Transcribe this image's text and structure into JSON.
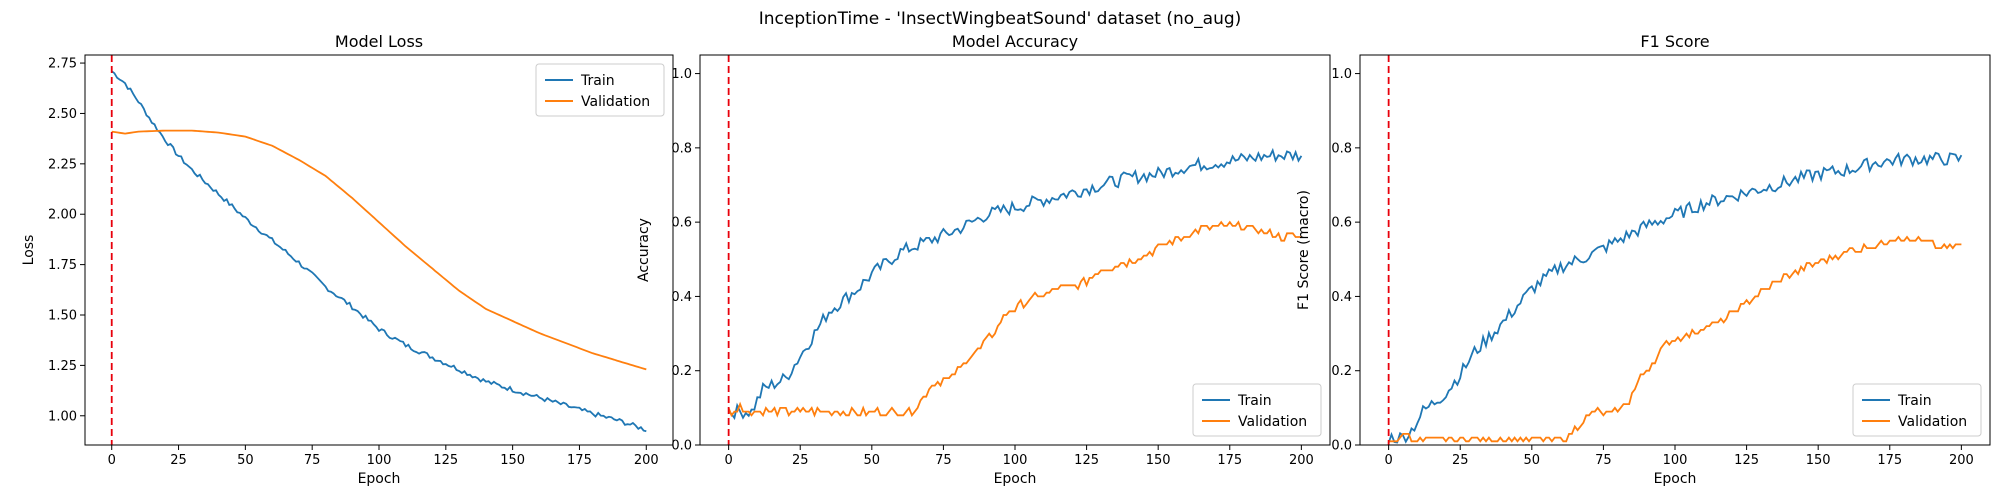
{
  "figure_title": "InceptionTime - 'InsectWingbeatSound' dataset (no_aug)",
  "colors": {
    "train": "#1f77b4",
    "validation": "#ff7f0e",
    "marker": "#e8000b",
    "axis": "#000000"
  },
  "chart_data": [
    {
      "type": "line",
      "title": "Model Loss",
      "xlabel": "Epoch",
      "ylabel": "Loss",
      "xlim": [
        -10,
        210
      ],
      "ylim": [
        0.855,
        2.79
      ],
      "xticks": [
        0,
        25,
        50,
        75,
        100,
        125,
        150,
        175,
        200
      ],
      "yticks": [
        1.0,
        1.25,
        1.5,
        1.75,
        2.0,
        2.25,
        2.5,
        2.75
      ],
      "ytick_labels": [
        "1.00",
        "1.25",
        "1.50",
        "1.75",
        "2.00",
        "2.25",
        "2.50",
        "2.75"
      ],
      "vline_x": 0,
      "legend": "top-right",
      "series": [
        {
          "name": "Train",
          "anchors": [
            [
              0,
              2.71
            ],
            [
              5,
              2.65
            ],
            [
              10,
              2.56
            ],
            [
              15,
              2.46
            ],
            [
              20,
              2.37
            ],
            [
              25,
              2.29
            ],
            [
              30,
              2.22
            ],
            [
              40,
              2.1
            ],
            [
              50,
              1.98
            ],
            [
              60,
              1.87
            ],
            [
              70,
              1.76
            ],
            [
              80,
              1.64
            ],
            [
              90,
              1.54
            ],
            [
              100,
              1.43
            ],
            [
              110,
              1.35
            ],
            [
              120,
              1.29
            ],
            [
              130,
              1.23
            ],
            [
              140,
              1.17
            ],
            [
              150,
              1.13
            ],
            [
              160,
              1.09
            ],
            [
              170,
              1.05
            ],
            [
              180,
              1.01
            ],
            [
              190,
              0.975
            ],
            [
              200,
              0.93
            ]
          ],
          "noise": 0.012
        },
        {
          "name": "Validation",
          "anchors": [
            [
              0,
              2.41
            ],
            [
              5,
              2.4
            ],
            [
              10,
              2.41
            ],
            [
              20,
              2.415
            ],
            [
              30,
              2.415
            ],
            [
              40,
              2.405
            ],
            [
              50,
              2.385
            ],
            [
              60,
              2.34
            ],
            [
              70,
              2.27
            ],
            [
              80,
              2.19
            ],
            [
              90,
              2.08
            ],
            [
              100,
              1.96
            ],
            [
              110,
              1.84
            ],
            [
              120,
              1.73
            ],
            [
              130,
              1.62
            ],
            [
              140,
              1.53
            ],
            [
              150,
              1.47
            ],
            [
              160,
              1.41
            ],
            [
              170,
              1.36
            ],
            [
              180,
              1.31
            ],
            [
              190,
              1.27
            ],
            [
              200,
              1.23
            ]
          ],
          "noise": 0
        }
      ]
    },
    {
      "type": "line",
      "title": "Model Accuracy",
      "xlabel": "Epoch",
      "ylabel": "Accuracy",
      "xlim": [
        -10,
        210
      ],
      "ylim": [
        0,
        1.05
      ],
      "xticks": [
        0,
        25,
        50,
        75,
        100,
        125,
        150,
        175,
        200
      ],
      "yticks": [
        0.0,
        0.2,
        0.4,
        0.6,
        0.8,
        1.0
      ],
      "ytick_labels": [
        "0.0",
        "0.2",
        "0.4",
        "0.6",
        "0.8",
        "1.0"
      ],
      "vline_x": 0,
      "legend": "bottom-right",
      "series": [
        {
          "name": "Train",
          "anchors": [
            [
              0,
              0.09
            ],
            [
              5,
              0.09
            ],
            [
              8,
              0.09
            ],
            [
              12,
              0.15
            ],
            [
              20,
              0.18
            ],
            [
              25,
              0.24
            ],
            [
              30,
              0.3
            ],
            [
              35,
              0.36
            ],
            [
              45,
              0.42
            ],
            [
              50,
              0.46
            ],
            [
              60,
              0.52
            ],
            [
              70,
              0.55
            ],
            [
              80,
              0.58
            ],
            [
              90,
              0.62
            ],
            [
              100,
              0.64
            ],
            [
              110,
              0.66
            ],
            [
              120,
              0.68
            ],
            [
              130,
              0.7
            ],
            [
              140,
              0.72
            ],
            [
              150,
              0.73
            ],
            [
              160,
              0.75
            ],
            [
              170,
              0.76
            ],
            [
              180,
              0.77
            ],
            [
              190,
              0.78
            ],
            [
              200,
              0.78
            ]
          ],
          "noise": 0.018
        },
        {
          "name": "Validation",
          "anchors": [
            [
              0,
              0.09
            ],
            [
              3,
              0.09
            ],
            [
              4,
              0.12
            ],
            [
              5,
              0.09
            ],
            [
              10,
              0.09
            ],
            [
              64,
              0.09
            ],
            [
              68,
              0.13
            ],
            [
              72,
              0.17
            ],
            [
              78,
              0.18
            ],
            [
              82,
              0.22
            ],
            [
              88,
              0.26
            ],
            [
              92,
              0.3
            ],
            [
              98,
              0.36
            ],
            [
              105,
              0.39
            ],
            [
              115,
              0.42
            ],
            [
              125,
              0.44
            ],
            [
              130,
              0.47
            ],
            [
              138,
              0.49
            ],
            [
              145,
              0.51
            ],
            [
              150,
              0.53
            ],
            [
              158,
              0.56
            ],
            [
              165,
              0.58
            ],
            [
              172,
              0.59
            ],
            [
              178,
              0.59
            ],
            [
              185,
              0.58
            ],
            [
              192,
              0.56
            ],
            [
              200,
              0.56
            ]
          ],
          "noise": 0.01,
          "step": true
        }
      ]
    },
    {
      "type": "line",
      "title": "F1 Score",
      "xlabel": "Epoch",
      "ylabel": "F1 Score (macro)",
      "xlim": [
        -10,
        210
      ],
      "ylim": [
        0,
        1.05
      ],
      "xticks": [
        0,
        25,
        50,
        75,
        100,
        125,
        150,
        175,
        200
      ],
      "yticks": [
        0.0,
        0.2,
        0.4,
        0.6,
        0.8,
        1.0
      ],
      "ytick_labels": [
        "0.0",
        "0.2",
        "0.4",
        "0.6",
        "0.8",
        "1.0"
      ],
      "vline_x": 0,
      "legend": "bottom-right",
      "series": [
        {
          "name": "Train",
          "anchors": [
            [
              0,
              0.02
            ],
            [
              5,
              0.02
            ],
            [
              8,
              0.04
            ],
            [
              12,
              0.09
            ],
            [
              20,
              0.14
            ],
            [
              25,
              0.19
            ],
            [
              30,
              0.25
            ],
            [
              40,
              0.33
            ],
            [
              50,
              0.42
            ],
            [
              60,
              0.48
            ],
            [
              70,
              0.51
            ],
            [
              80,
              0.55
            ],
            [
              90,
              0.59
            ],
            [
              100,
              0.62
            ],
            [
              110,
              0.65
            ],
            [
              120,
              0.67
            ],
            [
              130,
              0.69
            ],
            [
              140,
              0.71
            ],
            [
              150,
              0.73
            ],
            [
              160,
              0.74
            ],
            [
              170,
              0.76
            ],
            [
              180,
              0.77
            ],
            [
              190,
              0.77
            ],
            [
              200,
              0.77
            ]
          ],
          "noise": 0.018
        },
        {
          "name": "Validation",
          "anchors": [
            [
              0,
              0.015
            ],
            [
              4,
              0.015
            ],
            [
              6,
              0.04
            ],
            [
              8,
              0.015
            ],
            [
              62,
              0.015
            ],
            [
              66,
              0.05
            ],
            [
              72,
              0.09
            ],
            [
              78,
              0.08
            ],
            [
              84,
              0.12
            ],
            [
              88,
              0.18
            ],
            [
              92,
              0.22
            ],
            [
              98,
              0.28
            ],
            [
              105,
              0.3
            ],
            [
              115,
              0.33
            ],
            [
              125,
              0.38
            ],
            [
              130,
              0.41
            ],
            [
              140,
              0.46
            ],
            [
              150,
              0.49
            ],
            [
              160,
              0.52
            ],
            [
              170,
              0.54
            ],
            [
              178,
              0.56
            ],
            [
              185,
              0.55
            ],
            [
              192,
              0.53
            ],
            [
              200,
              0.54
            ]
          ],
          "noise": 0.01,
          "step": true
        }
      ]
    }
  ]
}
